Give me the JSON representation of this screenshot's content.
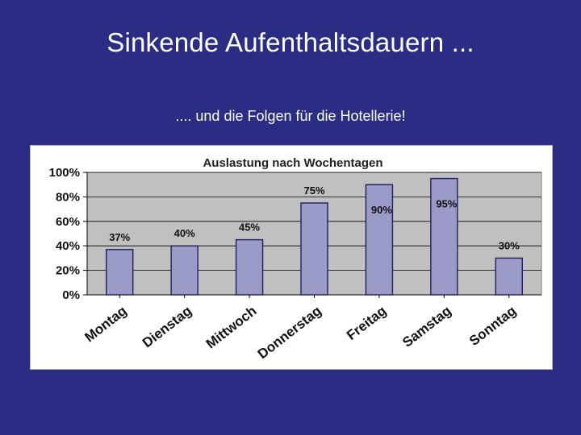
{
  "slide": {
    "title": "Sinkende Aufenthaltsdauern ...",
    "subtitle": ".... und die Folgen für die Hotellerie!"
  },
  "colors": {
    "background": "#2b2d84",
    "plot_area": "#c0c0c0",
    "bar_fill": "#9b9bc8",
    "bar_stroke": "#1f1f5e"
  },
  "chart_data": {
    "type": "bar",
    "title": "Auslastung nach Wochentagen",
    "categories": [
      "Montag",
      "Dienstag",
      "Mittwoch",
      "Donnerstag",
      "Freitag",
      "Samstag",
      "Sonntag"
    ],
    "values": [
      37,
      40,
      45,
      75,
      90,
      95,
      30
    ],
    "data_labels": [
      "37%",
      "40%",
      "45%",
      "75%",
      "90%",
      "95%",
      "30%"
    ],
    "data_label_position": [
      "above",
      "above",
      "above",
      "above",
      "inside-top",
      "inside-top",
      "above"
    ],
    "yticks": [
      0,
      20,
      40,
      60,
      80,
      100
    ],
    "ytick_labels": [
      "0%",
      "20%",
      "40%",
      "60%",
      "80%",
      "100%"
    ],
    "ylim": [
      0,
      100
    ],
    "grid": true,
    "legend": false
  }
}
